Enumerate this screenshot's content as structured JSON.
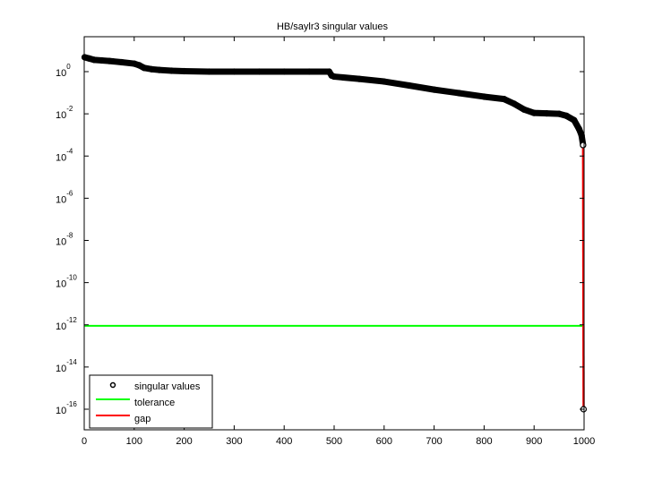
{
  "chart_data": {
    "type": "scatter",
    "title": "HB/saylr3 singular values",
    "xlabel": "",
    "ylabel": "",
    "xlim": [
      0,
      1000
    ],
    "ylim": [
      1e-17,
      45
    ],
    "yscale": "log",
    "grid": false,
    "legend_placement": "bottom-left",
    "x_ticks": [
      0,
      100,
      200,
      300,
      400,
      500,
      600,
      700,
      800,
      900,
      1000
    ],
    "y_ticks": [
      {
        "value": 1.0,
        "base": "10",
        "exp": "0"
      },
      {
        "value": 0.01,
        "base": "10",
        "exp": "-2"
      },
      {
        "value": 0.0001,
        "base": "10",
        "exp": "-4"
      },
      {
        "value": 1e-06,
        "base": "10",
        "exp": "-6"
      },
      {
        "value": 1e-08,
        "base": "10",
        "exp": "-8"
      },
      {
        "value": 1e-10,
        "base": "10",
        "exp": "-10"
      },
      {
        "value": 1e-12,
        "base": "10",
        "exp": "-12"
      },
      {
        "value": 1e-14,
        "base": "10",
        "exp": "-14"
      },
      {
        "value": 1e-16,
        "base": "10",
        "exp": "-16"
      }
    ],
    "series": [
      {
        "name": "singular values",
        "color": "#000000",
        "marker": "circle",
        "points": [
          [
            1,
            4.8
          ],
          [
            10,
            4.2
          ],
          [
            20,
            3.6
          ],
          [
            35,
            3.4
          ],
          [
            50,
            3.2
          ],
          [
            75,
            2.8
          ],
          [
            100,
            2.4
          ],
          [
            110,
            2.0
          ],
          [
            120,
            1.5
          ],
          [
            135,
            1.3
          ],
          [
            150,
            1.2
          ],
          [
            175,
            1.1
          ],
          [
            200,
            1.05
          ],
          [
            250,
            1.0
          ],
          [
            300,
            1.0
          ],
          [
            350,
            1.0
          ],
          [
            400,
            1.0
          ],
          [
            450,
            1.0
          ],
          [
            490,
            1.0
          ],
          [
            495,
            0.65
          ],
          [
            500,
            0.58
          ],
          [
            550,
            0.45
          ],
          [
            600,
            0.34
          ],
          [
            650,
            0.22
          ],
          [
            700,
            0.14
          ],
          [
            750,
            0.096
          ],
          [
            800,
            0.065
          ],
          [
            840,
            0.05
          ],
          [
            860,
            0.03
          ],
          [
            880,
            0.016
          ],
          [
            900,
            0.011
          ],
          [
            925,
            0.0105
          ],
          [
            950,
            0.01
          ],
          [
            965,
            0.008
          ],
          [
            980,
            0.005
          ],
          [
            990,
            0.0019
          ],
          [
            995,
            0.00096
          ],
          [
            998,
            0.00033
          ],
          [
            999,
            1e-16
          ]
        ]
      },
      {
        "name": "tolerance",
        "color": "#00ff00",
        "x": [
          1,
          999
        ],
        "values": [
          9e-13,
          9e-13
        ]
      },
      {
        "name": "gap",
        "color": "#ff0000",
        "x": [
          998,
          999
        ],
        "values": [
          0.00033,
          1e-16
        ]
      }
    ]
  }
}
